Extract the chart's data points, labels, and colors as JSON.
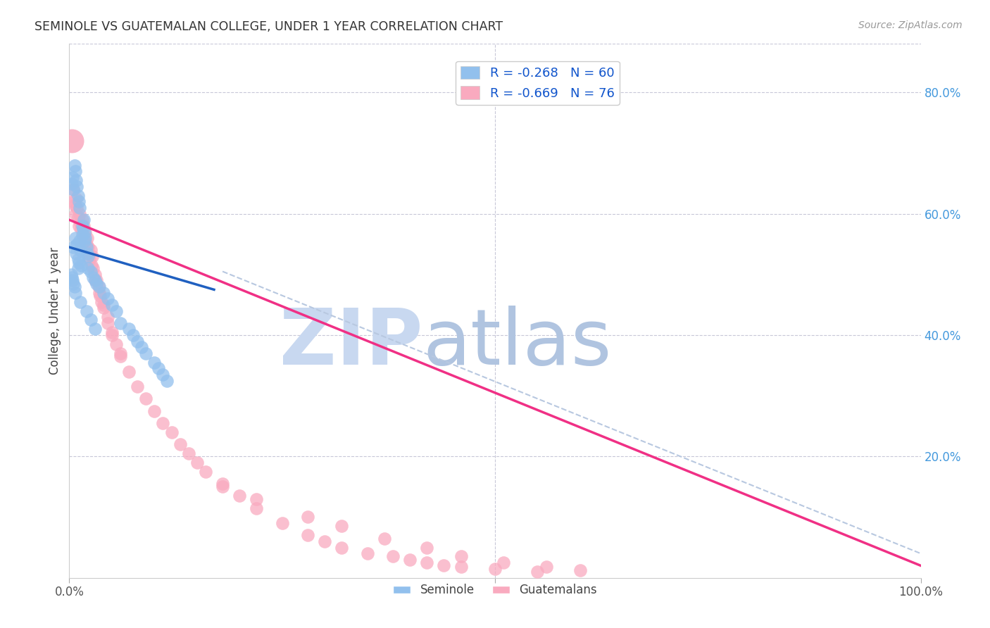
{
  "title": "SEMINOLE VS GUATEMALAN COLLEGE, UNDER 1 YEAR CORRELATION CHART",
  "source": "Source: ZipAtlas.com",
  "ylabel": "College, Under 1 year",
  "legend_label1": "R = -0.268   N = 60",
  "legend_label2": "R = -0.669   N = 76",
  "legend_bottom1": "Seminole",
  "legend_bottom2": "Guatemalans",
  "blue_color": "#92C0ED",
  "pink_color": "#F9AABF",
  "blue_line_color": "#2060C0",
  "pink_line_color": "#F03085",
  "dashed_line_color": "#B8C8E0",
  "background_color": "#FFFFFF",
  "grid_color": "#C8C8D8",
  "watermark_zip_color": "#C8D8F0",
  "watermark_atlas_color": "#B0C4E0",
  "seminole_x": [
    0.005,
    0.007,
    0.008,
    0.009,
    0.01,
    0.01,
    0.011,
    0.012,
    0.013,
    0.014,
    0.015,
    0.015,
    0.016,
    0.017,
    0.018,
    0.018,
    0.019,
    0.02,
    0.021,
    0.022,
    0.003,
    0.004,
    0.005,
    0.006,
    0.007,
    0.008,
    0.009,
    0.01,
    0.011,
    0.012,
    0.022,
    0.025,
    0.028,
    0.03,
    0.032,
    0.035,
    0.04,
    0.045,
    0.05,
    0.055,
    0.002,
    0.003,
    0.004,
    0.005,
    0.006,
    0.007,
    0.013,
    0.02,
    0.025,
    0.03,
    0.06,
    0.07,
    0.075,
    0.08,
    0.085,
    0.09,
    0.1,
    0.105,
    0.11,
    0.115
  ],
  "seminole_y": [
    0.545,
    0.56,
    0.535,
    0.55,
    0.525,
    0.51,
    0.52,
    0.555,
    0.54,
    0.515,
    0.58,
    0.565,
    0.575,
    0.59,
    0.57,
    0.555,
    0.56,
    0.545,
    0.535,
    0.53,
    0.65,
    0.66,
    0.64,
    0.68,
    0.67,
    0.655,
    0.645,
    0.63,
    0.62,
    0.61,
    0.51,
    0.505,
    0.495,
    0.49,
    0.485,
    0.48,
    0.47,
    0.46,
    0.45,
    0.44,
    0.5,
    0.495,
    0.49,
    0.485,
    0.48,
    0.47,
    0.455,
    0.44,
    0.425,
    0.41,
    0.42,
    0.41,
    0.4,
    0.39,
    0.38,
    0.37,
    0.355,
    0.345,
    0.335,
    0.325
  ],
  "guatemalan_x": [
    0.004,
    0.005,
    0.006,
    0.007,
    0.008,
    0.009,
    0.01,
    0.011,
    0.012,
    0.013,
    0.014,
    0.015,
    0.016,
    0.017,
    0.018,
    0.019,
    0.02,
    0.021,
    0.022,
    0.023,
    0.024,
    0.025,
    0.026,
    0.027,
    0.028,
    0.03,
    0.032,
    0.034,
    0.036,
    0.038,
    0.04,
    0.045,
    0.05,
    0.055,
    0.06,
    0.07,
    0.08,
    0.09,
    0.1,
    0.11,
    0.12,
    0.13,
    0.14,
    0.15,
    0.16,
    0.18,
    0.2,
    0.22,
    0.25,
    0.28,
    0.3,
    0.32,
    0.35,
    0.38,
    0.4,
    0.42,
    0.44,
    0.46,
    0.5,
    0.55,
    0.18,
    0.22,
    0.28,
    0.32,
    0.37,
    0.42,
    0.46,
    0.51,
    0.56,
    0.6,
    0.03,
    0.035,
    0.04,
    0.045,
    0.05,
    0.06
  ],
  "guatemalan_y": [
    0.62,
    0.64,
    0.615,
    0.6,
    0.625,
    0.61,
    0.595,
    0.58,
    0.6,
    0.585,
    0.575,
    0.59,
    0.565,
    0.58,
    0.555,
    0.57,
    0.55,
    0.56,
    0.545,
    0.535,
    0.525,
    0.54,
    0.515,
    0.53,
    0.51,
    0.5,
    0.49,
    0.48,
    0.465,
    0.455,
    0.445,
    0.42,
    0.4,
    0.385,
    0.365,
    0.34,
    0.315,
    0.295,
    0.275,
    0.255,
    0.24,
    0.22,
    0.205,
    0.19,
    0.175,
    0.155,
    0.135,
    0.115,
    0.09,
    0.07,
    0.06,
    0.05,
    0.04,
    0.035,
    0.03,
    0.025,
    0.02,
    0.018,
    0.015,
    0.01,
    0.15,
    0.13,
    0.1,
    0.085,
    0.065,
    0.05,
    0.035,
    0.025,
    0.018,
    0.012,
    0.49,
    0.47,
    0.45,
    0.43,
    0.405,
    0.37
  ],
  "xlim": [
    0.0,
    1.0
  ],
  "ylim": [
    0.0,
    0.88
  ],
  "blue_line_x": [
    0.0,
    0.17
  ],
  "blue_line_y": [
    0.545,
    0.475
  ],
  "pink_line_x": [
    0.0,
    1.0
  ],
  "pink_line_y": [
    0.59,
    0.02
  ],
  "dash_line_x": [
    0.18,
    1.0
  ],
  "dash_line_y": [
    0.505,
    0.04
  ]
}
